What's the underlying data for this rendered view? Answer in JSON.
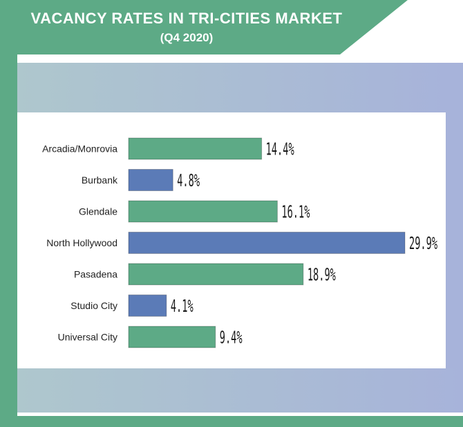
{
  "header": {
    "title": "VACANCY RATES IN TRI-CITIES MARKET",
    "subtitle": "(Q4 2020)"
  },
  "colors": {
    "frame_green": "#5daa86",
    "band_left": "#aec7cd",
    "band_right": "#a7b3da",
    "bar_green": "#5daa86",
    "bar_blue": "#5b7bb7"
  },
  "chart_data": {
    "type": "bar",
    "orientation": "horizontal",
    "title": "VACANCY RATES IN TRI-CITIES MARKET",
    "subtitle": "(Q4 2020)",
    "categories": [
      "Arcadia/Monrovia",
      "Burbank",
      "Glendale",
      "North Hollywood",
      "Pasadena",
      "Studio City",
      "Universal City"
    ],
    "values": [
      14.4,
      4.8,
      16.1,
      29.9,
      18.9,
      4.1,
      9.4
    ],
    "labels": [
      "14.4%",
      "4.8%",
      "16.1%",
      "29.9%",
      "18.9%",
      "4.1%",
      "9.4%"
    ],
    "bar_colors": [
      "#5daa86",
      "#5b7bb7",
      "#5daa86",
      "#5b7bb7",
      "#5daa86",
      "#5b7bb7",
      "#5daa86"
    ],
    "xlim": [
      0,
      29.9
    ],
    "grid": false,
    "legend": "none"
  }
}
